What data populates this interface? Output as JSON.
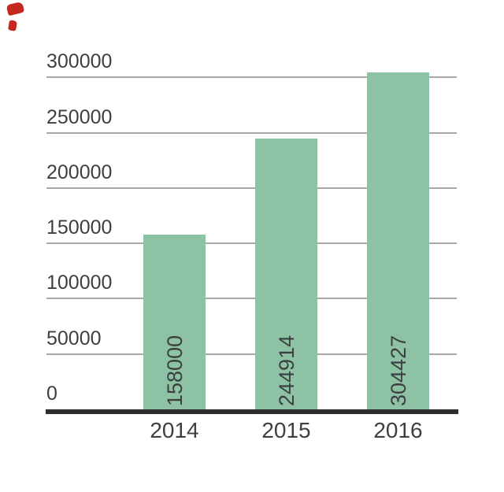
{
  "chart_data": {
    "type": "bar",
    "title": "",
    "xlabel": "",
    "ylabel": "",
    "categories": [
      "2014",
      "2015",
      "2016"
    ],
    "values": [
      158000,
      244914,
      304427
    ],
    "data_labels": [
      "158000",
      "244914",
      "304427"
    ],
    "y_ticks": [
      0,
      50000,
      100000,
      150000,
      200000,
      250000,
      300000
    ],
    "y_tick_labels": [
      "0",
      "50000",
      "100000",
      "150000",
      "200000",
      "250000",
      "300000"
    ],
    "ylim": [
      0,
      320000
    ],
    "grid": true,
    "legend": false,
    "data_label_rotation": -90,
    "colors": {
      "bar": "#8dc3a4",
      "grid": "#a8a8a8",
      "axis": "#2e2e2e",
      "text": "#3d4043"
    }
  },
  "decorations": {
    "red_mark_color": "#c5281e",
    "red_mark_count": 2
  }
}
